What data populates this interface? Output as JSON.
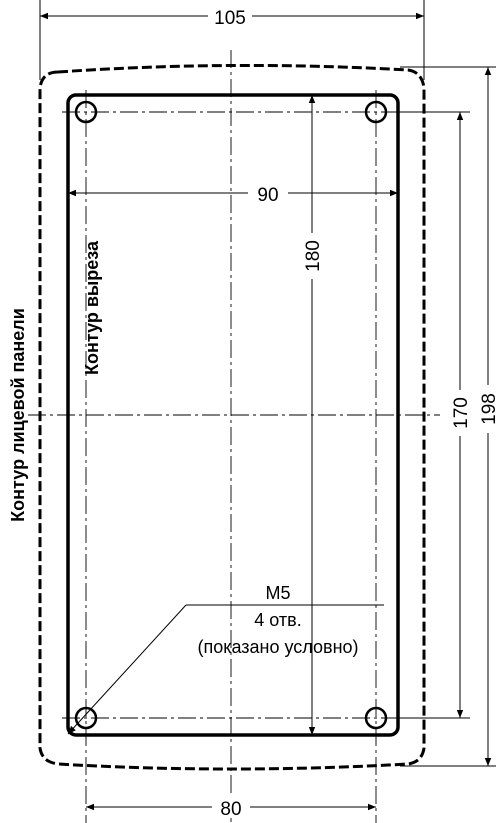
{
  "drawing": {
    "labels": {
      "panel_contour": "Контур лицевой панели",
      "cutout_contour": "Контур выреза"
    },
    "dimensions": {
      "top_width": "105",
      "inner_width": "90",
      "inner_height": "180",
      "hole_span_vertical": "170",
      "outer_height": "198",
      "hole_span_horizontal": "80"
    },
    "hole_note": {
      "thread": "M5",
      "count": "4 отв.",
      "remark": "(показано условно)"
    }
  }
}
